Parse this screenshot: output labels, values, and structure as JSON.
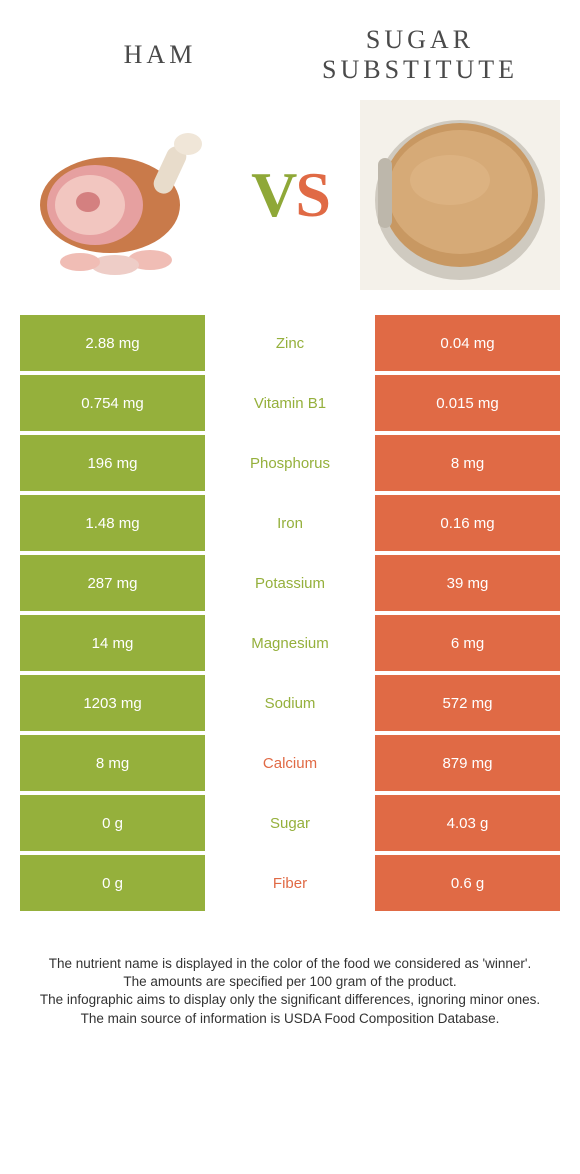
{
  "colors": {
    "ham": "#95b03c",
    "sugar": "#e06a45",
    "text": "#4a4a4a"
  },
  "left": {
    "title": "Ham"
  },
  "right": {
    "title": "Sugar substitute"
  },
  "vs": {
    "v": "V",
    "s": "S"
  },
  "rows": [
    {
      "name": "Zinc",
      "left": "2.88 mg",
      "right": "0.04 mg",
      "winner": "ham"
    },
    {
      "name": "Vitamin B1",
      "left": "0.754 mg",
      "right": "0.015 mg",
      "winner": "ham"
    },
    {
      "name": "Phosphorus",
      "left": "196 mg",
      "right": "8 mg",
      "winner": "ham"
    },
    {
      "name": "Iron",
      "left": "1.48 mg",
      "right": "0.16 mg",
      "winner": "ham"
    },
    {
      "name": "Potassium",
      "left": "287 mg",
      "right": "39 mg",
      "winner": "ham"
    },
    {
      "name": "Magnesium",
      "left": "14 mg",
      "right": "6 mg",
      "winner": "ham"
    },
    {
      "name": "Sodium",
      "left": "1203 mg",
      "right": "572 mg",
      "winner": "ham"
    },
    {
      "name": "Calcium",
      "left": "8 mg",
      "right": "879 mg",
      "winner": "sugar"
    },
    {
      "name": "Sugar",
      "left": "0 g",
      "right": "4.03 g",
      "winner": "ham"
    },
    {
      "name": "Fiber",
      "left": "0 g",
      "right": "0.6 g",
      "winner": "sugar"
    }
  ],
  "footer": [
    "The nutrient name is displayed in the color of the food we considered as 'winner'.",
    "The amounts are specified per 100 gram of the product.",
    "The infographic aims to display only the significant differences, ignoring minor ones.",
    "The main source of information is USDA Food Composition Database."
  ]
}
